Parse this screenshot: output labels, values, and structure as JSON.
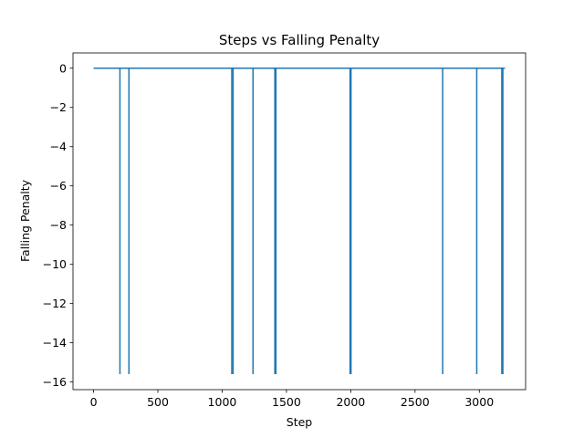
{
  "chart_data": {
    "type": "line",
    "title": "Steps vs Falling Penalty",
    "xlabel": "Step",
    "ylabel": "Falling Penalty",
    "xlim": [
      -160,
      3360
    ],
    "ylim": [
      -16.39,
      0.78
    ],
    "xticks": [
      0,
      500,
      1000,
      1500,
      2000,
      2500,
      3000
    ],
    "yticks": [
      0,
      -2,
      -4,
      -6,
      -8,
      -10,
      -12,
      -14,
      -16
    ],
    "xtick_labels": [
      "0",
      "500",
      "1000",
      "1500",
      "2000",
      "2500",
      "3000"
    ],
    "ytick_labels": [
      "0",
      "−2",
      "−4",
      "−6",
      "−8",
      "−10",
      "−12",
      "−14",
      "−16"
    ],
    "grid": false,
    "legend": "none",
    "series": [
      {
        "color": "#1f77b4",
        "baseline": 0,
        "x_range": [
          0,
          3200
        ],
        "spikes": [
          {
            "x": 205,
            "y": -15.6
          },
          {
            "x": 275,
            "y": -15.6
          },
          {
            "x": 1075,
            "y": -15.6
          },
          {
            "x": 1085,
            "y": -15.6
          },
          {
            "x": 1240,
            "y": -15.6
          },
          {
            "x": 1410,
            "y": -15.6
          },
          {
            "x": 1418,
            "y": -15.6
          },
          {
            "x": 1995,
            "y": -15.6
          },
          {
            "x": 2002,
            "y": -15.6
          },
          {
            "x": 2715,
            "y": -15.6
          },
          {
            "x": 2980,
            "y": -15.6
          },
          {
            "x": 3175,
            "y": -15.6
          },
          {
            "x": 3183,
            "y": -15.6
          }
        ]
      }
    ]
  }
}
